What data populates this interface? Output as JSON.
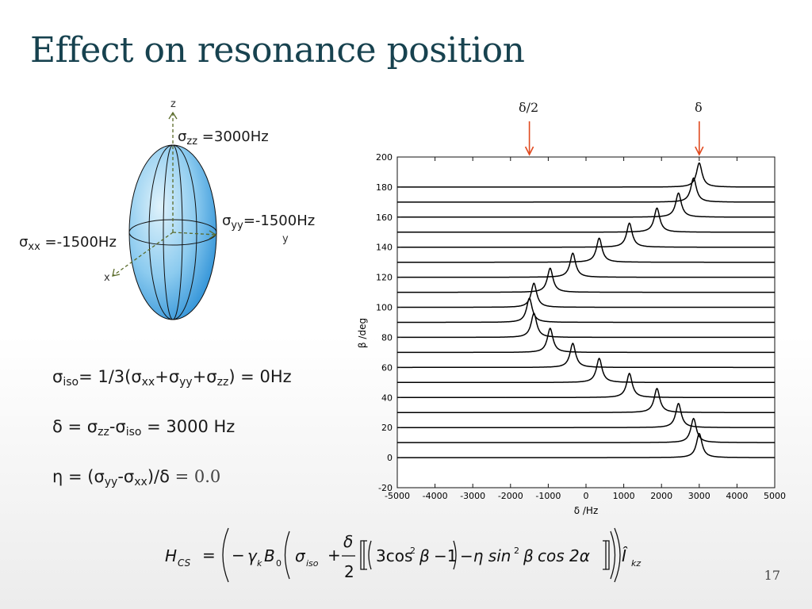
{
  "slide": {
    "title": "Effect on resonance position",
    "page_number": "17"
  },
  "ellipsoid": {
    "axis_z": "z",
    "axis_y": "y",
    "axis_x": "x",
    "sigma_zz_sym": "σ",
    "sigma_zz_sub": "zz",
    "sigma_zz_val": " =3000Hz",
    "sigma_yy_sym": "σ",
    "sigma_yy_sub": "yy",
    "sigma_yy_val": "=-1500Hz",
    "sigma_xx_sym": "σ",
    "sigma_xx_sub": "xx",
    "sigma_xx_val": " =-1500Hz"
  },
  "equations": {
    "iso_line": {
      "p1": "σ",
      "s1": "iso",
      "p2": "= 1/3(σ",
      "s2": "xx",
      "p3": "+σ",
      "s3": "yy",
      "p4": "+σ",
      "s4": "zz",
      "p5": ") = 0Hz"
    },
    "delta_line": {
      "p1": "δ = σ",
      "s1": "zz",
      "p2": "-σ",
      "s2": "iso",
      "p3": " = 3000 Hz"
    },
    "eta_line": {
      "p1": "η = (σ",
      "s1": "yy",
      "p2": "-σ",
      "s2": "xx",
      "p3": ")/δ",
      "p4": " = 0.0"
    }
  },
  "arrows": {
    "left_label": "δ/2",
    "right_label": "δ"
  },
  "formula": {
    "H": "H",
    "CS": "CS",
    "eq": "=",
    "minus": "−",
    "gamma": "γ",
    "k": "k",
    "B": "B",
    "zero": "0",
    "sigma": "σ",
    "iso": "iso",
    "plus": "+",
    "delta": "δ",
    "two": "2",
    "body": "3cos",
    "sq": "2",
    "beta": "β",
    "m1": "−1",
    "eta_part": "−η sin",
    "cos2a": "cos 2α",
    "I": "Î",
    "kz": "kz"
  },
  "chart_data": {
    "type": "line",
    "title": "",
    "xlabel": "δ /Hz",
    "ylabel": "β /deg",
    "xlim": [
      -5000,
      5000
    ],
    "ylim": [
      -20,
      200
    ],
    "xticks": [
      -5000,
      -4000,
      -3000,
      -2000,
      -1000,
      0,
      1000,
      2000,
      3000,
      4000,
      5000
    ],
    "yticks": [
      -20,
      0,
      20,
      40,
      60,
      80,
      100,
      120,
      140,
      160,
      180,
      200
    ],
    "grid": false,
    "series": [
      {
        "beta": 0,
        "peak": 3000
      },
      {
        "beta": 10,
        "peak": 2850
      },
      {
        "beta": 20,
        "peak": 2450
      },
      {
        "beta": 30,
        "peak": 1880
      },
      {
        "beta": 40,
        "peak": 1150
      },
      {
        "beta": 50,
        "peak": 350
      },
      {
        "beta": 60,
        "peak": -350
      },
      {
        "beta": 70,
        "peak": -950
      },
      {
        "beta": 80,
        "peak": -1380
      },
      {
        "beta": 90,
        "peak": -1500
      },
      {
        "beta": 100,
        "peak": -1380
      },
      {
        "beta": 110,
        "peak": -950
      },
      {
        "beta": 120,
        "peak": -350
      },
      {
        "beta": 130,
        "peak": 350
      },
      {
        "beta": 140,
        "peak": 1150
      },
      {
        "beta": 150,
        "peak": 1880
      },
      {
        "beta": 160,
        "peak": 2450
      },
      {
        "beta": 170,
        "peak": 2850
      },
      {
        "beta": 180,
        "peak": 3000
      }
    ],
    "annotations": [
      {
        "label": "δ/2",
        "x": -1500
      },
      {
        "label": "δ",
        "x": 3000
      }
    ]
  }
}
